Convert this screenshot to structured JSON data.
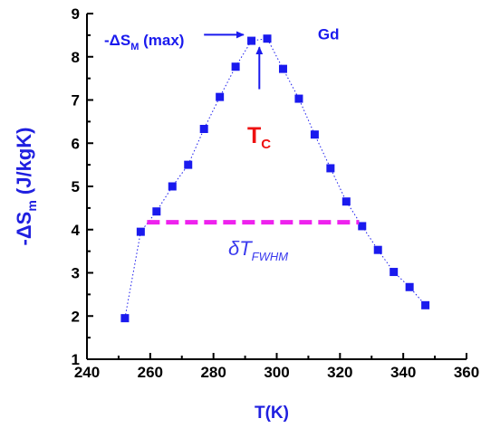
{
  "chart_data": {
    "type": "scatter",
    "xlabel": "T(K)",
    "ylabel_main": "-ΔS",
    "ylabel_sub": "m",
    "ylabel_unit": " (J/kgK)",
    "xlim": [
      240,
      360
    ],
    "ylim": [
      1,
      9
    ],
    "xticks": [
      240,
      260,
      280,
      300,
      320,
      340,
      360
    ],
    "yticks": [
      1,
      2,
      3,
      4,
      5,
      6,
      7,
      8,
      9
    ],
    "grid": false,
    "series": [
      {
        "color": "#1a1aee",
        "points": [
          {
            "x": 252,
            "y": 1.95
          },
          {
            "x": 257,
            "y": 3.95
          },
          {
            "x": 262,
            "y": 4.42
          },
          {
            "x": 267,
            "y": 5.0
          },
          {
            "x": 272,
            "y": 5.5
          },
          {
            "x": 277,
            "y": 6.33
          },
          {
            "x": 282,
            "y": 7.07
          },
          {
            "x": 287,
            "y": 7.77
          },
          {
            "x": 292,
            "y": 8.37
          },
          {
            "x": 297,
            "y": 8.42
          },
          {
            "x": 302,
            "y": 7.72
          },
          {
            "x": 307,
            "y": 7.03
          },
          {
            "x": 312,
            "y": 6.2
          },
          {
            "x": 317,
            "y": 5.42
          },
          {
            "x": 322,
            "y": 4.65
          },
          {
            "x": 327,
            "y": 4.08
          },
          {
            "x": 332,
            "y": 3.53
          },
          {
            "x": 337,
            "y": 3.02
          },
          {
            "x": 342,
            "y": 2.67
          },
          {
            "x": 347,
            "y": 2.25
          }
        ]
      }
    ],
    "fwhm_line": {
      "x_start": 259,
      "x_end": 326,
      "y": 4.17,
      "color": "#ee22ee"
    },
    "annotations": {
      "max_label_main": "-ΔS",
      "max_label_sub": "M",
      "max_label_suffix": " (max)",
      "max_color": "#1a1aee",
      "max_arrow": {
        "from_x": 277,
        "from_y": 8.51,
        "to_x": 289.5,
        "to_y": 8.51
      },
      "material": "Gd",
      "material_color": "#1a1aee",
      "material_pos": {
        "x": 313,
        "y": 8.4
      },
      "tc_main": "T",
      "tc_sub": "C",
      "tc_color": "#ee1111",
      "tc_arrow": {
        "from_x": 294.5,
        "from_y": 7.25,
        "to_x": 294.5,
        "to_y": 8.22
      },
      "fwhm_main": "δT",
      "fwhm_sub": "FWHM",
      "fwhm_color": "#3a3aee"
    }
  }
}
